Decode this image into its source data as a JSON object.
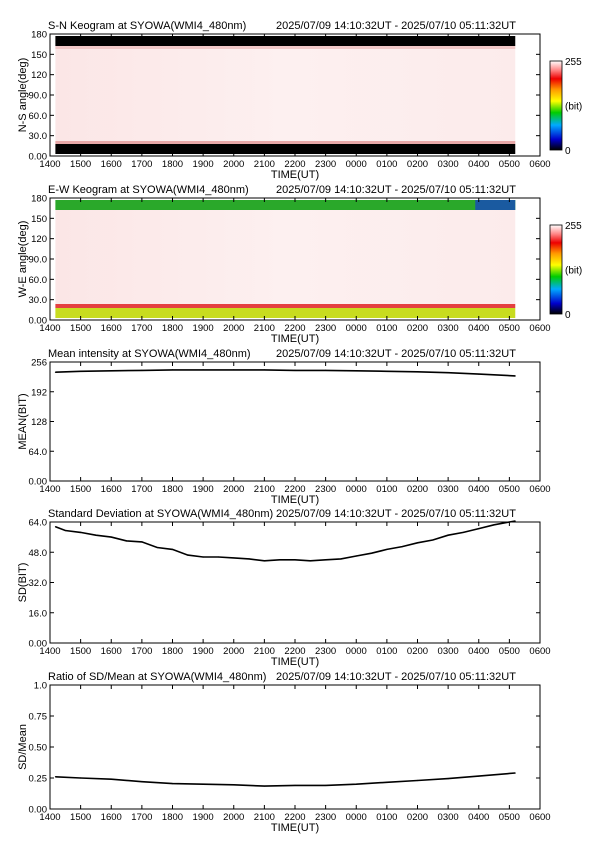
{
  "time_range": "2025/07/09 14:10:32UT - 2025/07/10 05:11:32UT",
  "x_ticks": [
    "1400",
    "1500",
    "1600",
    "1700",
    "1800",
    "1900",
    "2000",
    "2100",
    "2200",
    "2300",
    "0000",
    "0100",
    "0200",
    "0300",
    "0400",
    "0500",
    "0600"
  ],
  "xlabel": "TIME(UT)",
  "colorbar": {
    "max": "255",
    "min": "0",
    "unit": "(bit)"
  },
  "chart_data": [
    {
      "type": "heatmap",
      "title": "S-N Keogram at SYOWA(WMI4_480nm)",
      "ylabel": "N-S angle(deg)",
      "y_ticks": [
        "0.00",
        "30.0",
        "60.0",
        "90.0",
        "120",
        "150",
        "180"
      ],
      "ylim": [
        0,
        180
      ],
      "x_start_hour": 14.176,
      "x_end_hour": 29.192,
      "description_colors": {
        "body": "#fdf1f1",
        "edges": "#000000"
      }
    },
    {
      "type": "heatmap",
      "title": "E-W Keogram at SYOWA(WMI4_480nm)",
      "ylabel": "W-E angle(deg)",
      "y_ticks": [
        "0.00",
        "30.0",
        "60.0",
        "90.0",
        "120",
        "150",
        "180"
      ],
      "ylim": [
        0,
        180
      ],
      "x_start_hour": 14.176,
      "x_end_hour": 29.192,
      "description_colors": {
        "body": "#fdf1f1",
        "top_edge": "#2aa82a",
        "bottom_edge": "#d8e020"
      }
    },
    {
      "type": "line",
      "title": "Mean intensity at SYOWA(WMI4_480nm)",
      "ylabel": "MEAN(BIT)",
      "y_ticks": [
        "0.00",
        "64.0",
        "128",
        "192",
        "256"
      ],
      "ylim": [
        0,
        256
      ],
      "x_hours": [
        14.18,
        15,
        16,
        17,
        18,
        19,
        20,
        21,
        22,
        23,
        24,
        25,
        26,
        27,
        28,
        29.19
      ],
      "values": [
        234,
        236,
        237,
        238,
        239,
        239,
        239,
        239,
        238,
        238,
        237,
        236,
        235,
        233,
        230,
        226
      ]
    },
    {
      "type": "line",
      "title": "Standard Deviation at SYOWA(WMI4_480nm)",
      "ylabel": "SD(BIT)",
      "y_ticks": [
        "0.00",
        "16.0",
        "32.0",
        "48.0",
        "64.0"
      ],
      "ylim": [
        0,
        64
      ],
      "x_hours": [
        14.18,
        14.5,
        15,
        15.5,
        16,
        16.5,
        17,
        17.5,
        18,
        18.5,
        19,
        19.5,
        20,
        20.5,
        21,
        21.5,
        22,
        22.5,
        23,
        23.5,
        24,
        24.5,
        25,
        25.5,
        26,
        26.5,
        27,
        27.5,
        28,
        28.5,
        29,
        29.19
      ],
      "values": [
        61.5,
        59.5,
        58.5,
        57,
        56,
        54,
        53.5,
        50.5,
        49.5,
        46.5,
        45.5,
        45.5,
        45,
        44.5,
        43.5,
        44,
        44,
        43.5,
        44,
        44.5,
        46,
        47.5,
        49.5,
        51,
        53,
        54.5,
        57,
        58.5,
        60.5,
        62.5,
        64,
        64.5
      ]
    },
    {
      "type": "line",
      "title": "Ratio of SD/Mean at SYOWA(WMI4_480nm)",
      "ylabel": "SD/Mean",
      "y_ticks": [
        "0.00",
        "0.25",
        "0.50",
        "0.75",
        "1.0"
      ],
      "ylim": [
        0,
        1
      ],
      "x_hours": [
        14.18,
        15,
        16,
        17,
        18,
        19,
        20,
        21,
        22,
        23,
        24,
        25,
        26,
        27,
        28,
        29.19
      ],
      "values": [
        0.26,
        0.25,
        0.24,
        0.22,
        0.205,
        0.2,
        0.195,
        0.185,
        0.19,
        0.19,
        0.2,
        0.215,
        0.23,
        0.245,
        0.265,
        0.29
      ]
    }
  ]
}
